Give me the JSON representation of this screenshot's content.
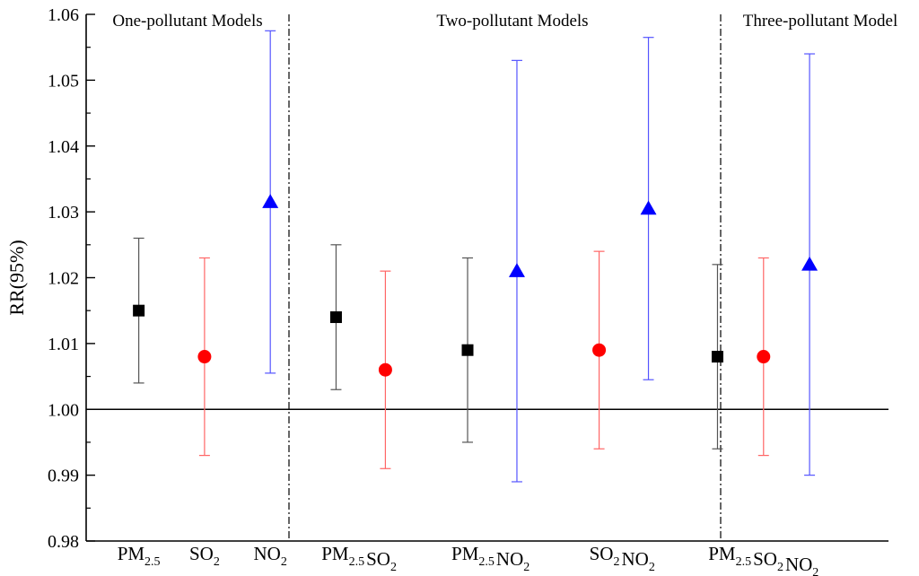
{
  "chart_data": {
    "type": "scatter",
    "ylabel": "RR(95%)",
    "ylim": [
      0.98,
      1.06
    ],
    "yticks": [
      "0.98",
      "0.99",
      "1.00",
      "1.01",
      "1.02",
      "1.03",
      "1.04",
      "1.05",
      "1.06"
    ],
    "reference_line": 1.0,
    "grid": false,
    "panels": [
      {
        "label": "One-pollutant Models"
      },
      {
        "label": "Two-pollutant Models"
      },
      {
        "label": "Three-pollutant Model"
      }
    ],
    "x_groups": [
      {
        "parts": [
          {
            "base": "PM",
            "sub": "2.5"
          }
        ]
      },
      {
        "parts": [
          {
            "base": "SO",
            "sub": "2"
          }
        ]
      },
      {
        "parts": [
          {
            "base": "NO",
            "sub": "2"
          }
        ]
      },
      {
        "parts": [
          {
            "base": "PM",
            "sub": "2.5"
          },
          {
            "base": "SO",
            "sub": "2"
          }
        ]
      },
      {
        "parts": [
          {
            "base": "PM",
            "sub": "2.5"
          },
          {
            "base": "NO",
            "sub": "2"
          }
        ]
      },
      {
        "parts": [
          {
            "base": "SO",
            "sub": "2"
          },
          {
            "base": "NO",
            "sub": "2"
          }
        ]
      },
      {
        "parts": [
          {
            "base": "PM",
            "sub": "2.5"
          },
          {
            "base": "SO",
            "sub": "2"
          },
          {
            "base": "NO",
            "sub": "2"
          }
        ]
      }
    ],
    "points": [
      {
        "pollutant": "PM2.5",
        "x": 1,
        "rr": 1.015,
        "lower": 1.004,
        "upper": 1.026
      },
      {
        "pollutant": "SO2",
        "x": 2,
        "rr": 1.008,
        "lower": 0.993,
        "upper": 1.023
      },
      {
        "pollutant": "NO2",
        "x": 3,
        "rr": 1.0315,
        "lower": 1.0055,
        "upper": 1.0575
      },
      {
        "pollutant": "PM2.5",
        "x": 4,
        "rr": 1.014,
        "lower": 1.003,
        "upper": 1.025
      },
      {
        "pollutant": "SO2",
        "x": 4.75,
        "rr": 1.006,
        "lower": 0.991,
        "upper": 1.021
      },
      {
        "pollutant": "PM2.5",
        "x": 6,
        "rr": 1.009,
        "lower": 0.995,
        "upper": 1.023
      },
      {
        "pollutant": "NO2",
        "x": 6.75,
        "rr": 1.021,
        "lower": 0.989,
        "upper": 1.053
      },
      {
        "pollutant": "SO2",
        "x": 8,
        "rr": 1.009,
        "lower": 0.994,
        "upper": 1.024
      },
      {
        "pollutant": "NO2",
        "x": 8.75,
        "rr": 1.0305,
        "lower": 1.0045,
        "upper": 1.0565
      },
      {
        "pollutant": "PM2.5",
        "x": 9.8,
        "rr": 1.008,
        "lower": 0.994,
        "upper": 1.022
      },
      {
        "pollutant": "SO2",
        "x": 10.5,
        "rr": 1.008,
        "lower": 0.993,
        "upper": 1.023
      },
      {
        "pollutant": "NO2",
        "x": 11.2,
        "rr": 1.022,
        "lower": 0.99,
        "upper": 1.054
      }
    ],
    "styles": {
      "PM2.5": {
        "marker": "square",
        "color": "#000000",
        "bar_color": "#555555"
      },
      "SO2": {
        "marker": "circle",
        "color": "#ff0000",
        "bar_color": "#ff6666"
      },
      "NO2": {
        "marker": "triangle",
        "color": "#0000ff",
        "bar_color": "#5555ff"
      }
    }
  }
}
